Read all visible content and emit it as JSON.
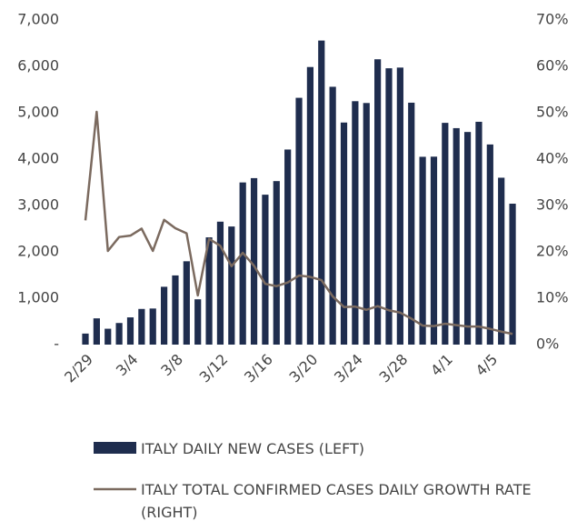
{
  "chart_data": {
    "type": "bar_line",
    "categories": [
      "2/29",
      null,
      null,
      null,
      "3/4",
      null,
      null,
      null,
      "3/8",
      null,
      null,
      null,
      "3/12",
      null,
      null,
      null,
      "3/16",
      null,
      null,
      null,
      "3/20",
      null,
      null,
      null,
      "3/24",
      null,
      null,
      null,
      "3/28",
      null,
      null,
      null,
      "4/1",
      null,
      null,
      null,
      "4/5",
      null,
      null
    ],
    "series": [
      {
        "name": "ITALY DAILY NEW CASES (LEFT)",
        "type": "bar",
        "color": "#1f2d4e",
        "values": [
          238,
          566,
          342,
          466,
          587,
          769,
          778,
          1247,
          1492,
          1797,
          977,
          2313,
          2651,
          2547,
          3497,
          3590,
          3233,
          3526,
          4207,
          5322,
          5986,
          6557,
          5560,
          4789,
          5249,
          5210,
          6153,
          5959,
          5974,
          5217,
          4050,
          4053,
          4782,
          4668,
          4585,
          4805,
          4316,
          3599,
          3039
        ]
      },
      {
        "name": "ITALY TOTAL CONFIRMED CASES DAILY GROWTH RATE (RIGHT)",
        "type": "line",
        "axis": "y2",
        "color": "#7b6a5f",
        "values": [
          26.8,
          50.2,
          20.2,
          23.2,
          23.5,
          25,
          20.2,
          26.9,
          25.1,
          24,
          10.6,
          22.8,
          21.3,
          16.9,
          19.8,
          17,
          13.1,
          12.6,
          13.4,
          14.9,
          14.6,
          13.9,
          10.4,
          8.1,
          8.2,
          7.5,
          8.3,
          7.4,
          6.9,
          5.6,
          4.1,
          4,
          4.5,
          4.2,
          3.9,
          3.9,
          3.4,
          2.8,
          2.3
        ]
      }
    ],
    "ylim": [
      0,
      7000
    ],
    "yticks": [
      {
        "value": 0,
        "label": "-"
      },
      {
        "value": 1000,
        "label": "1,000"
      },
      {
        "value": 2000,
        "label": "2,000"
      },
      {
        "value": 3000,
        "label": "3,000"
      },
      {
        "value": 4000,
        "label": "4,000"
      },
      {
        "value": 5000,
        "label": "5,000"
      },
      {
        "value": 6000,
        "label": "6,000"
      },
      {
        "value": 7000,
        "label": "7,000"
      }
    ],
    "y2lim": [
      0,
      70
    ],
    "y2ticks": [
      {
        "value": 0,
        "label": "0%"
      },
      {
        "value": 10,
        "label": "10%"
      },
      {
        "value": 20,
        "label": "20%"
      },
      {
        "value": 30,
        "label": "30%"
      },
      {
        "value": 40,
        "label": "40%"
      },
      {
        "value": 50,
        "label": "50%"
      },
      {
        "value": 60,
        "label": "60%"
      },
      {
        "value": 70,
        "label": "70%"
      }
    ],
    "grid": false
  }
}
